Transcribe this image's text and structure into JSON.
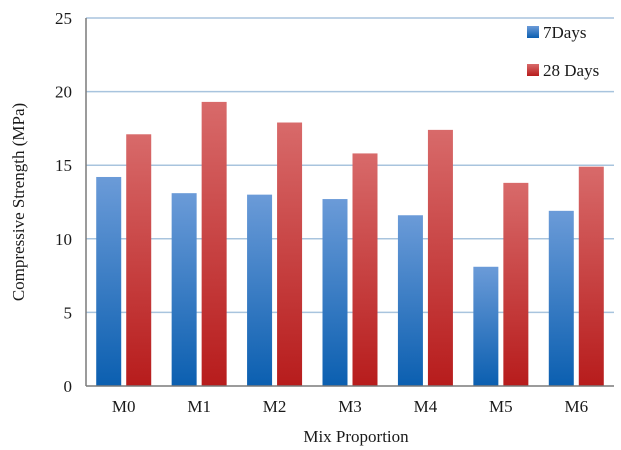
{
  "chart_data": {
    "type": "bar",
    "title": "",
    "xlabel": "Mix Proportion",
    "ylabel": "Compressive Strength (MPa)",
    "ylim": [
      0,
      25
    ],
    "yticks": [
      "0",
      "5",
      "10",
      "15",
      "20",
      "25"
    ],
    "categories": [
      "M0",
      "M1",
      "M2",
      "M3",
      "M4",
      "M5",
      "M6"
    ],
    "grid": true,
    "legend_position": "top-right",
    "series": [
      {
        "name": "7Days",
        "color": "#2a6fbf",
        "values": [
          14.2,
          13.1,
          13.0,
          12.7,
          11.6,
          8.1,
          11.9
        ]
      },
      {
        "name": "28 Days",
        "color": "#c83a3a",
        "values": [
          17.1,
          19.3,
          17.9,
          15.8,
          17.4,
          13.8,
          14.9
        ]
      }
    ]
  }
}
